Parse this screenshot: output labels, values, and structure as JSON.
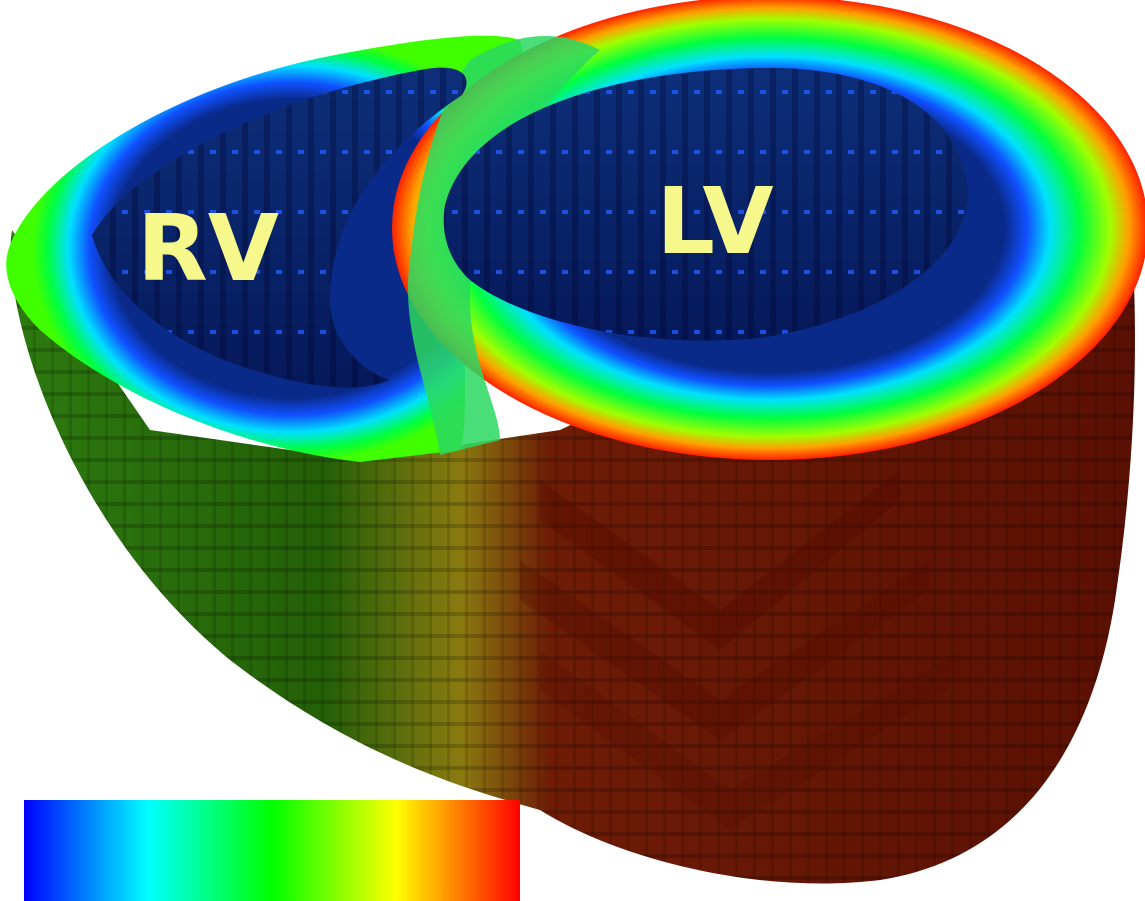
{
  "labels": {
    "rv": "RV",
    "lv": "LV"
  },
  "colors": {
    "label_fill": "#f6f88c",
    "cavity_dark": "#08206a",
    "outer_green": "#1f6a08",
    "outer_red": "#6a1306",
    "colormap": [
      "#0000ff",
      "#00ffff",
      "#00ff00",
      "#ffff00",
      "#ff0000"
    ]
  },
  "colorbar": {
    "orientation": "horizontal",
    "title": "",
    "tick_labels": []
  }
}
